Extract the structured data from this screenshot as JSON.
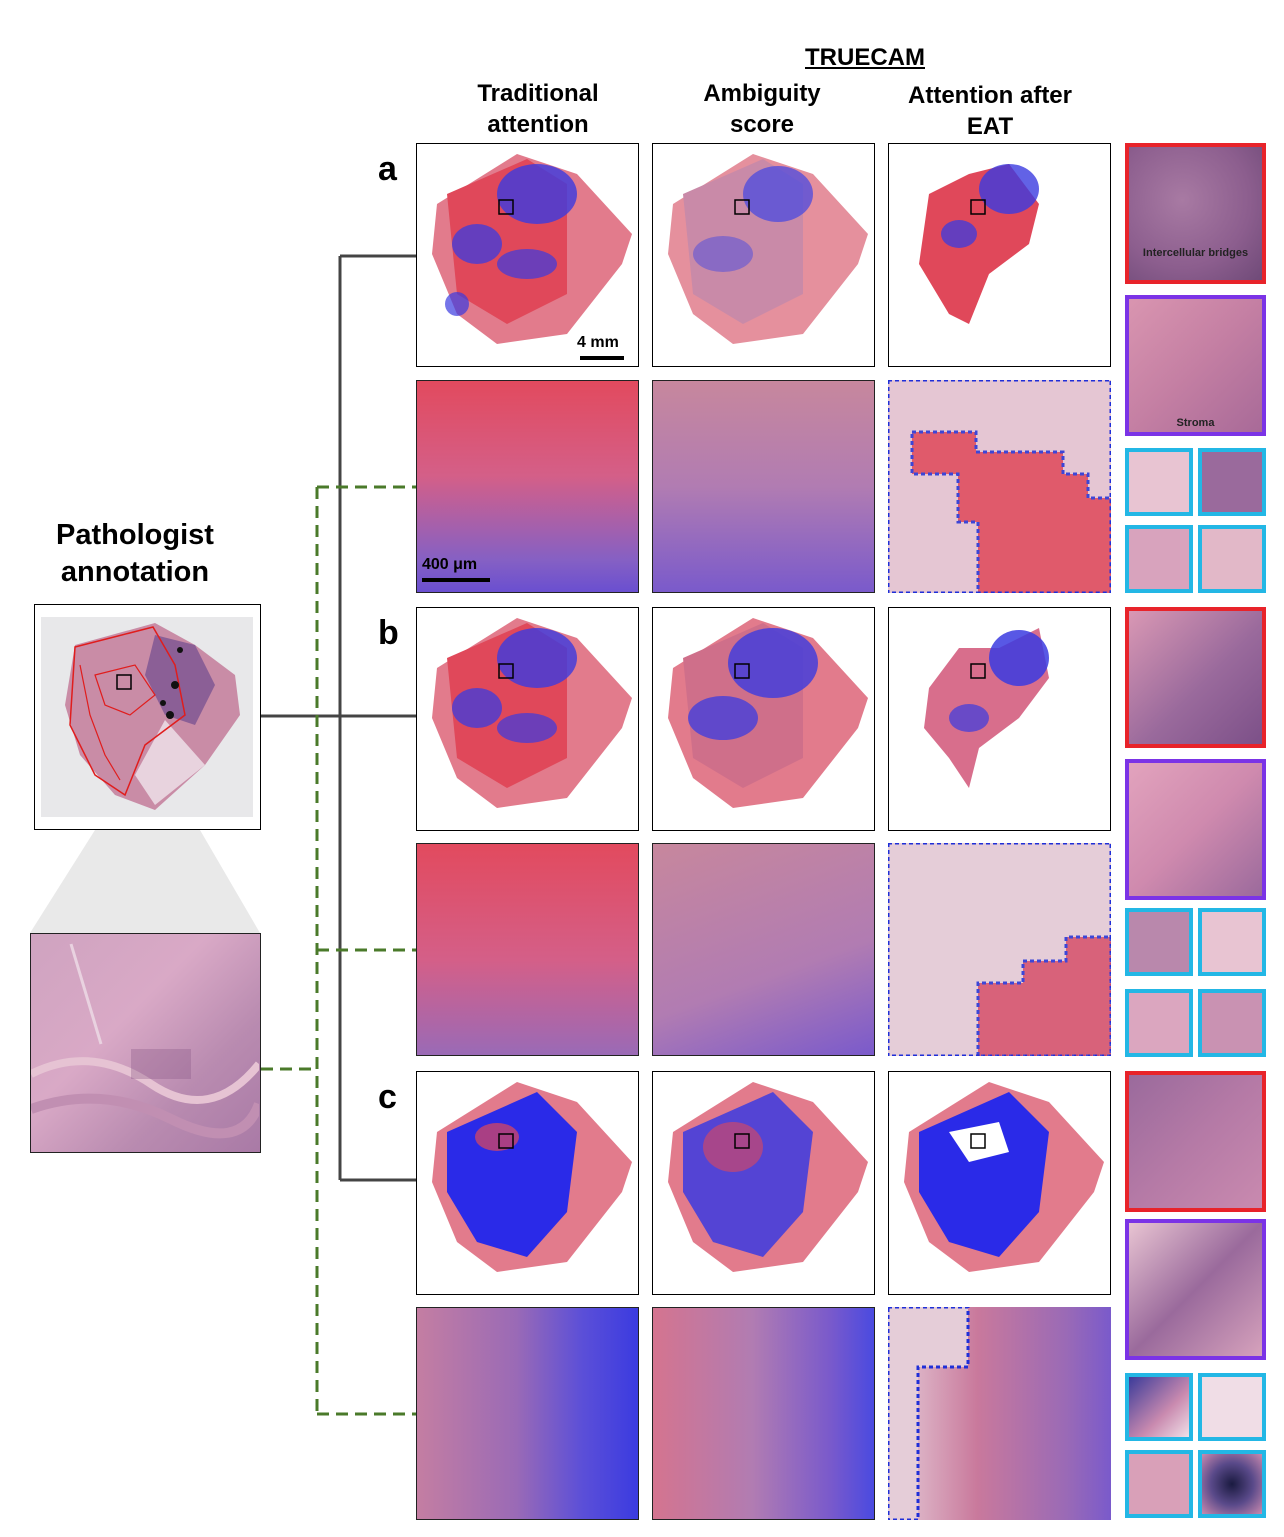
{
  "header": {
    "group_title": "TRUECAM",
    "columns": [
      {
        "line1": "Traditional",
        "line2": "attention"
      },
      {
        "line1": "Ambiguity",
        "line2": "score"
      },
      {
        "line1": "Attention after",
        "line2": "EAT"
      }
    ]
  },
  "left": {
    "title_line1": "Pathologist",
    "title_line2": "annotation"
  },
  "rows": [
    {
      "label": "a",
      "scale_wsi": "4 mm",
      "scale_zoom": "400 μm"
    },
    {
      "label": "b"
    },
    {
      "label": "c"
    }
  ],
  "patch_captions": {
    "a_red": "Intercellular bridges",
    "a_purple": "Stroma"
  },
  "colors": {
    "attention_red": "#e33a4a",
    "attention_blue": "#2a2ae0",
    "tissue_pink": "#d9879c",
    "connector_gray": "#444444",
    "connector_green": "#4a7a2a",
    "eat_outline": "#1f2fd8",
    "patch_red": "#e8232a",
    "patch_purple": "#7b33e6",
    "patch_cyan": "#23b7e5"
  }
}
